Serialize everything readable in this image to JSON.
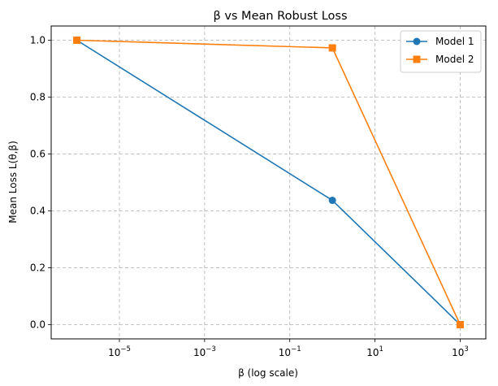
{
  "chart_data": {
    "type": "line",
    "title": "β vs Mean Robust Loss",
    "xlabel": "β (log scale)",
    "ylabel": "Mean Loss L(θ,β)",
    "x_scale": "log",
    "x": [
      1e-06,
      1,
      1000
    ],
    "xlim": [
      2.5e-07,
      4000
    ],
    "ylim": [
      -0.05,
      1.05
    ],
    "x_ticks": [
      {
        "value": 1e-05,
        "base": "10",
        "exp": "−5"
      },
      {
        "value": 0.001,
        "base": "10",
        "exp": "−3"
      },
      {
        "value": 0.1,
        "base": "10",
        "exp": "−1"
      },
      {
        "value": 10,
        "base": "10",
        "exp": "1"
      },
      {
        "value": 1000,
        "base": "10",
        "exp": "3"
      }
    ],
    "y_ticks": [
      {
        "value": 0.0,
        "label": "0.0"
      },
      {
        "value": 0.2,
        "label": "0.2"
      },
      {
        "value": 0.4,
        "label": "0.4"
      },
      {
        "value": 0.6,
        "label": "0.6"
      },
      {
        "value": 0.8,
        "label": "0.8"
      },
      {
        "value": 1.0,
        "label": "1.0"
      }
    ],
    "grid": true,
    "legend_position": "top-right",
    "series": [
      {
        "name": "Model 1",
        "values": [
          1.0,
          0.437,
          0.0
        ],
        "color": "#1f77b4",
        "marker": "circle"
      },
      {
        "name": "Model 2",
        "values": [
          1.0,
          0.973,
          0.0
        ],
        "color": "#ff7f0e",
        "marker": "square"
      }
    ]
  }
}
